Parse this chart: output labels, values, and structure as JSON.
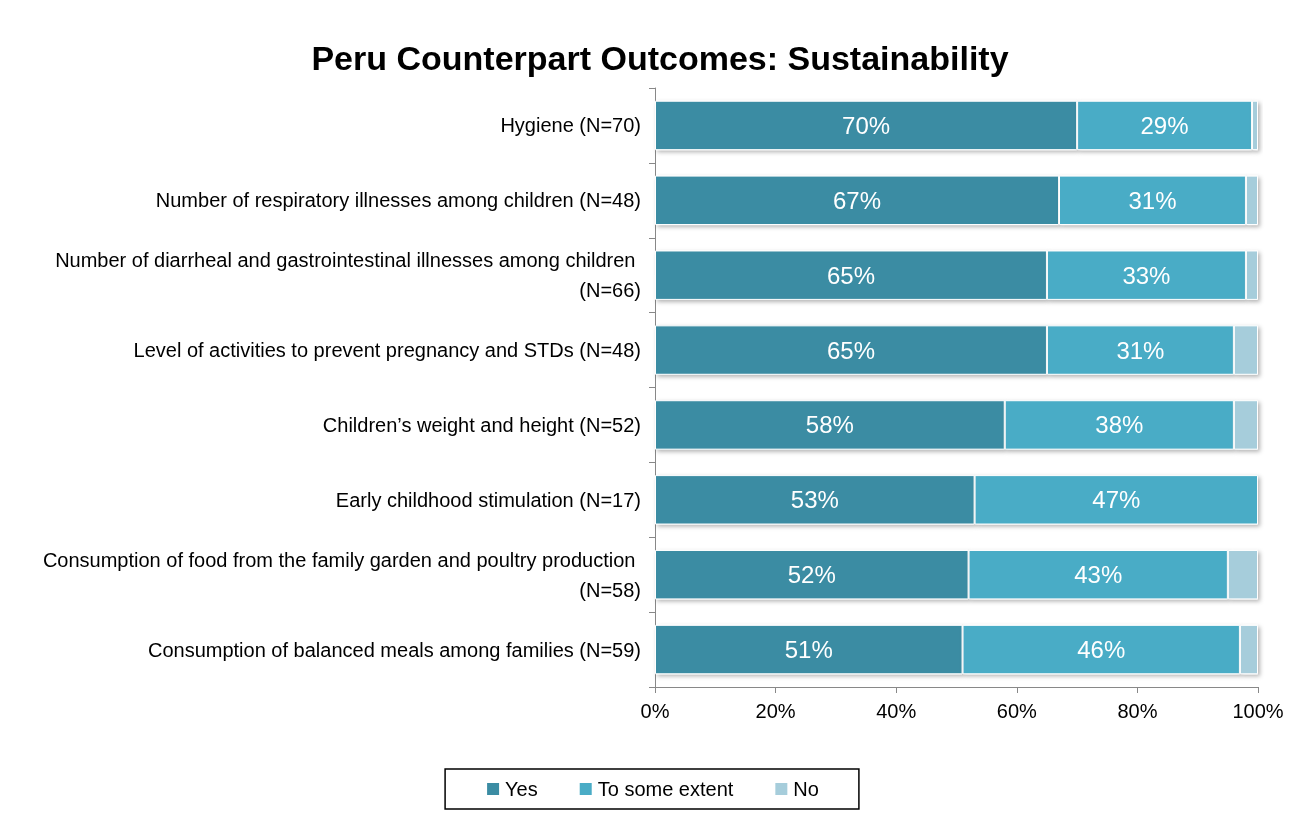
{
  "chart_data": {
    "type": "bar",
    "orientation": "horizontal",
    "stacked": true,
    "title": "Peru Counterpart Outcomes: Sustainability",
    "categories": [
      "Hygiene (N=70)",
      "Number of respiratory illnesses among children (N=48)",
      "Number of diarrheal and gastrointestinal illnesses among children (N=66)",
      "Level of activities to prevent pregnancy and STDs (N=48)",
      "Children’s weight and height (N=52)",
      "Early childhood stimulation (N=17)",
      "Consumption of food from the family garden and poultry production (N=58)",
      "Consumption of balanced meals among families (N=59)"
    ],
    "series": [
      {
        "name": "Yes",
        "color": "#3b8ca3",
        "values": [
          70,
          67,
          65,
          65,
          58,
          53,
          52,
          51
        ],
        "value_labels": [
          "70%",
          "67%",
          "65%",
          "65%",
          "58%",
          "53%",
          "52%",
          "51%"
        ]
      },
      {
        "name": "To some extent",
        "color": "#4aacc6",
        "values": [
          29,
          31,
          33,
          31,
          38,
          47,
          43,
          46
        ],
        "value_labels": [
          "29%",
          "31%",
          "33%",
          "31%",
          "38%",
          "47%",
          "43%",
          "46%"
        ]
      },
      {
        "name": "No",
        "color": "#a6cddb",
        "values": [
          1,
          2,
          2,
          4,
          4,
          0,
          5,
          3
        ]
      }
    ],
    "xlim": [
      0,
      100
    ],
    "xticks": [
      {
        "value": 0,
        "label": "0%"
      },
      {
        "value": 20,
        "label": "20%"
      },
      {
        "value": 40,
        "label": "40%"
      },
      {
        "value": 60,
        "label": "60%"
      },
      {
        "value": 80,
        "label": "80%"
      },
      {
        "value": 100,
        "label": "100%"
      }
    ],
    "grid": false,
    "legend": "bottom"
  }
}
